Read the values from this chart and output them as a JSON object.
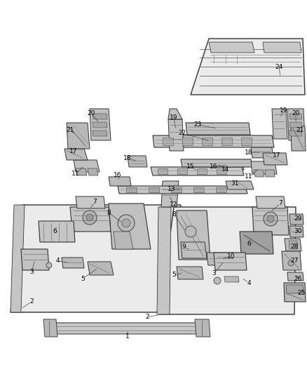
{
  "bg_color": "#ffffff",
  "line_color": "#555555",
  "component_fill": "#d8d8d8",
  "component_edge": "#333333",
  "panel_fill": "#ececec",
  "panel_edge": "#444444"
}
